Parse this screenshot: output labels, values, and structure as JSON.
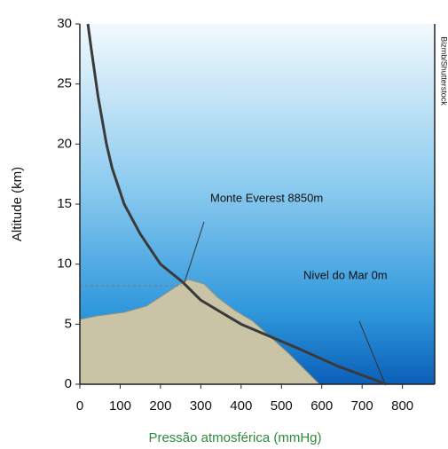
{
  "chart_data": {
    "type": "line",
    "x_label": "Pressão atmosférica (mmHg)",
    "y_label": "Altitude (km)",
    "x": [
      760,
      640,
      540,
      400,
      300,
      255,
      200,
      150,
      110,
      80,
      66,
      45,
      28,
      20
    ],
    "series": [
      {
        "color": "#3a3a3a",
        "values": [
          0,
          1.5,
          3,
          5,
          7,
          8.5,
          10,
          12.5,
          15,
          18,
          20,
          24,
          28,
          30
        ]
      }
    ],
    "xlim": [
      0,
      880
    ],
    "xticks": [
      0,
      100,
      200,
      300,
      400,
      500,
      600,
      700,
      800
    ],
    "ylim": [
      0,
      30
    ],
    "yticks": [
      0,
      5,
      10,
      15,
      20,
      25,
      30
    ],
    "grid": false,
    "annotations": [
      {
        "text": "Monte Everest 8850m"
      },
      {
        "text": "Nivel do Mar 0m"
      }
    ],
    "credit": "Bizmb/Shutterstock"
  }
}
